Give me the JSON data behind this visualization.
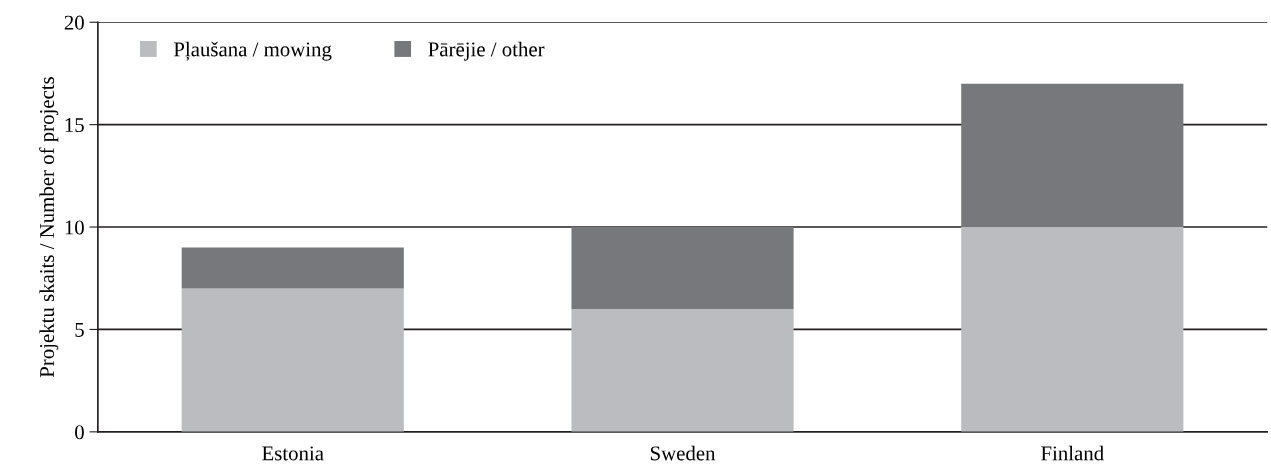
{
  "chart_data": {
    "type": "bar",
    "stacked": true,
    "ylabel": "Projektu skaits / Number of projects",
    "categories": [
      "Estonia",
      "Sweden",
      "Finland"
    ],
    "series": [
      {
        "name": "Pļaušana / mowing",
        "color": "#bbbcc0",
        "values": [
          7,
          6,
          10
        ]
      },
      {
        "name": "Pārējie / other",
        "color": "#77787b",
        "values": [
          2,
          4,
          7
        ]
      }
    ],
    "ylim": [
      0,
      20
    ],
    "yticks": [
      0,
      5,
      10,
      15,
      20
    ],
    "grid": "y",
    "legend": "top left"
  }
}
